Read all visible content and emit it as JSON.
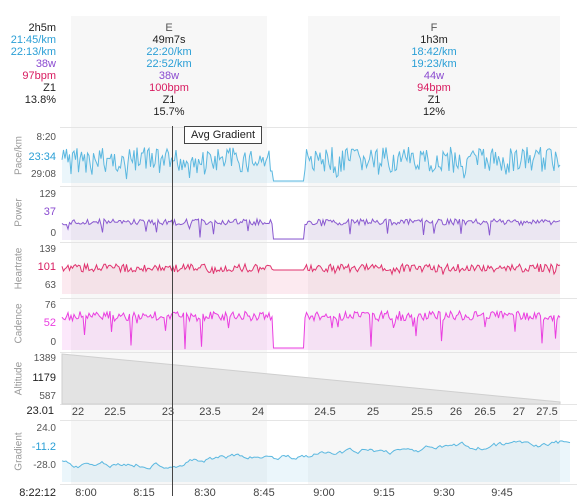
{
  "summary": {
    "left": {
      "duration": "2h5m",
      "pace1": "21:45/km",
      "pace2": "22:13/km",
      "power": "38w",
      "hr": "97bpm",
      "zone": "Z1",
      "pct": "13.8%"
    },
    "laps": [
      {
        "name": "E",
        "duration": "49m7s",
        "pace1": "22:20/km",
        "pace2": "22:52/km",
        "power": "38w",
        "hr": "100bpm",
        "zone": "Z1",
        "pct": "15.7%"
      },
      {
        "name": "F",
        "duration": "1h3m",
        "pace1": "18:42/km",
        "pace2": "19:23/km",
        "power": "44w",
        "hr": "94bpm",
        "zone": "Z1",
        "pct": "12%"
      }
    ]
  },
  "tooltip": "Avg Gradient",
  "panels": {
    "pace": {
      "label": "Pace/km",
      "top": "8:20",
      "current": "23:34",
      "bottom": "29:08",
      "color": "#5bb8e0"
    },
    "power": {
      "label": "Power",
      "top": "129",
      "current": "37",
      "bottom": "0",
      "color": "#8a5ad0"
    },
    "heartrate": {
      "label": "Heartrate",
      "top": "139",
      "current": "101",
      "bottom": "63",
      "color": "#e0336e"
    },
    "cadence": {
      "label": "Cadence",
      "top": "76",
      "current": "52",
      "bottom": "0",
      "color": "#ea3fe0"
    },
    "altitude": {
      "label": "Altitude",
      "top": "1389",
      "current": "1179",
      "bottom": "587",
      "color": "#444444"
    },
    "gradient": {
      "label": "Gradient",
      "top": "24.0",
      "current": "-11.2",
      "bottom": "-28.0",
      "color": "#5bb8e0"
    }
  },
  "distance_axis": {
    "current": "23.01",
    "ticks": [
      "22",
      "22.5",
      "23",
      "23.5",
      "24",
      "24.5",
      "25",
      "25.5",
      "26",
      "26.5",
      "27",
      "27.5"
    ]
  },
  "time_axis": {
    "current": "8:22:12",
    "ticks": [
      "8:00",
      "8:15",
      "8:30",
      "8:45",
      "9:00",
      "9:15",
      "9:30",
      "9:45"
    ]
  }
}
